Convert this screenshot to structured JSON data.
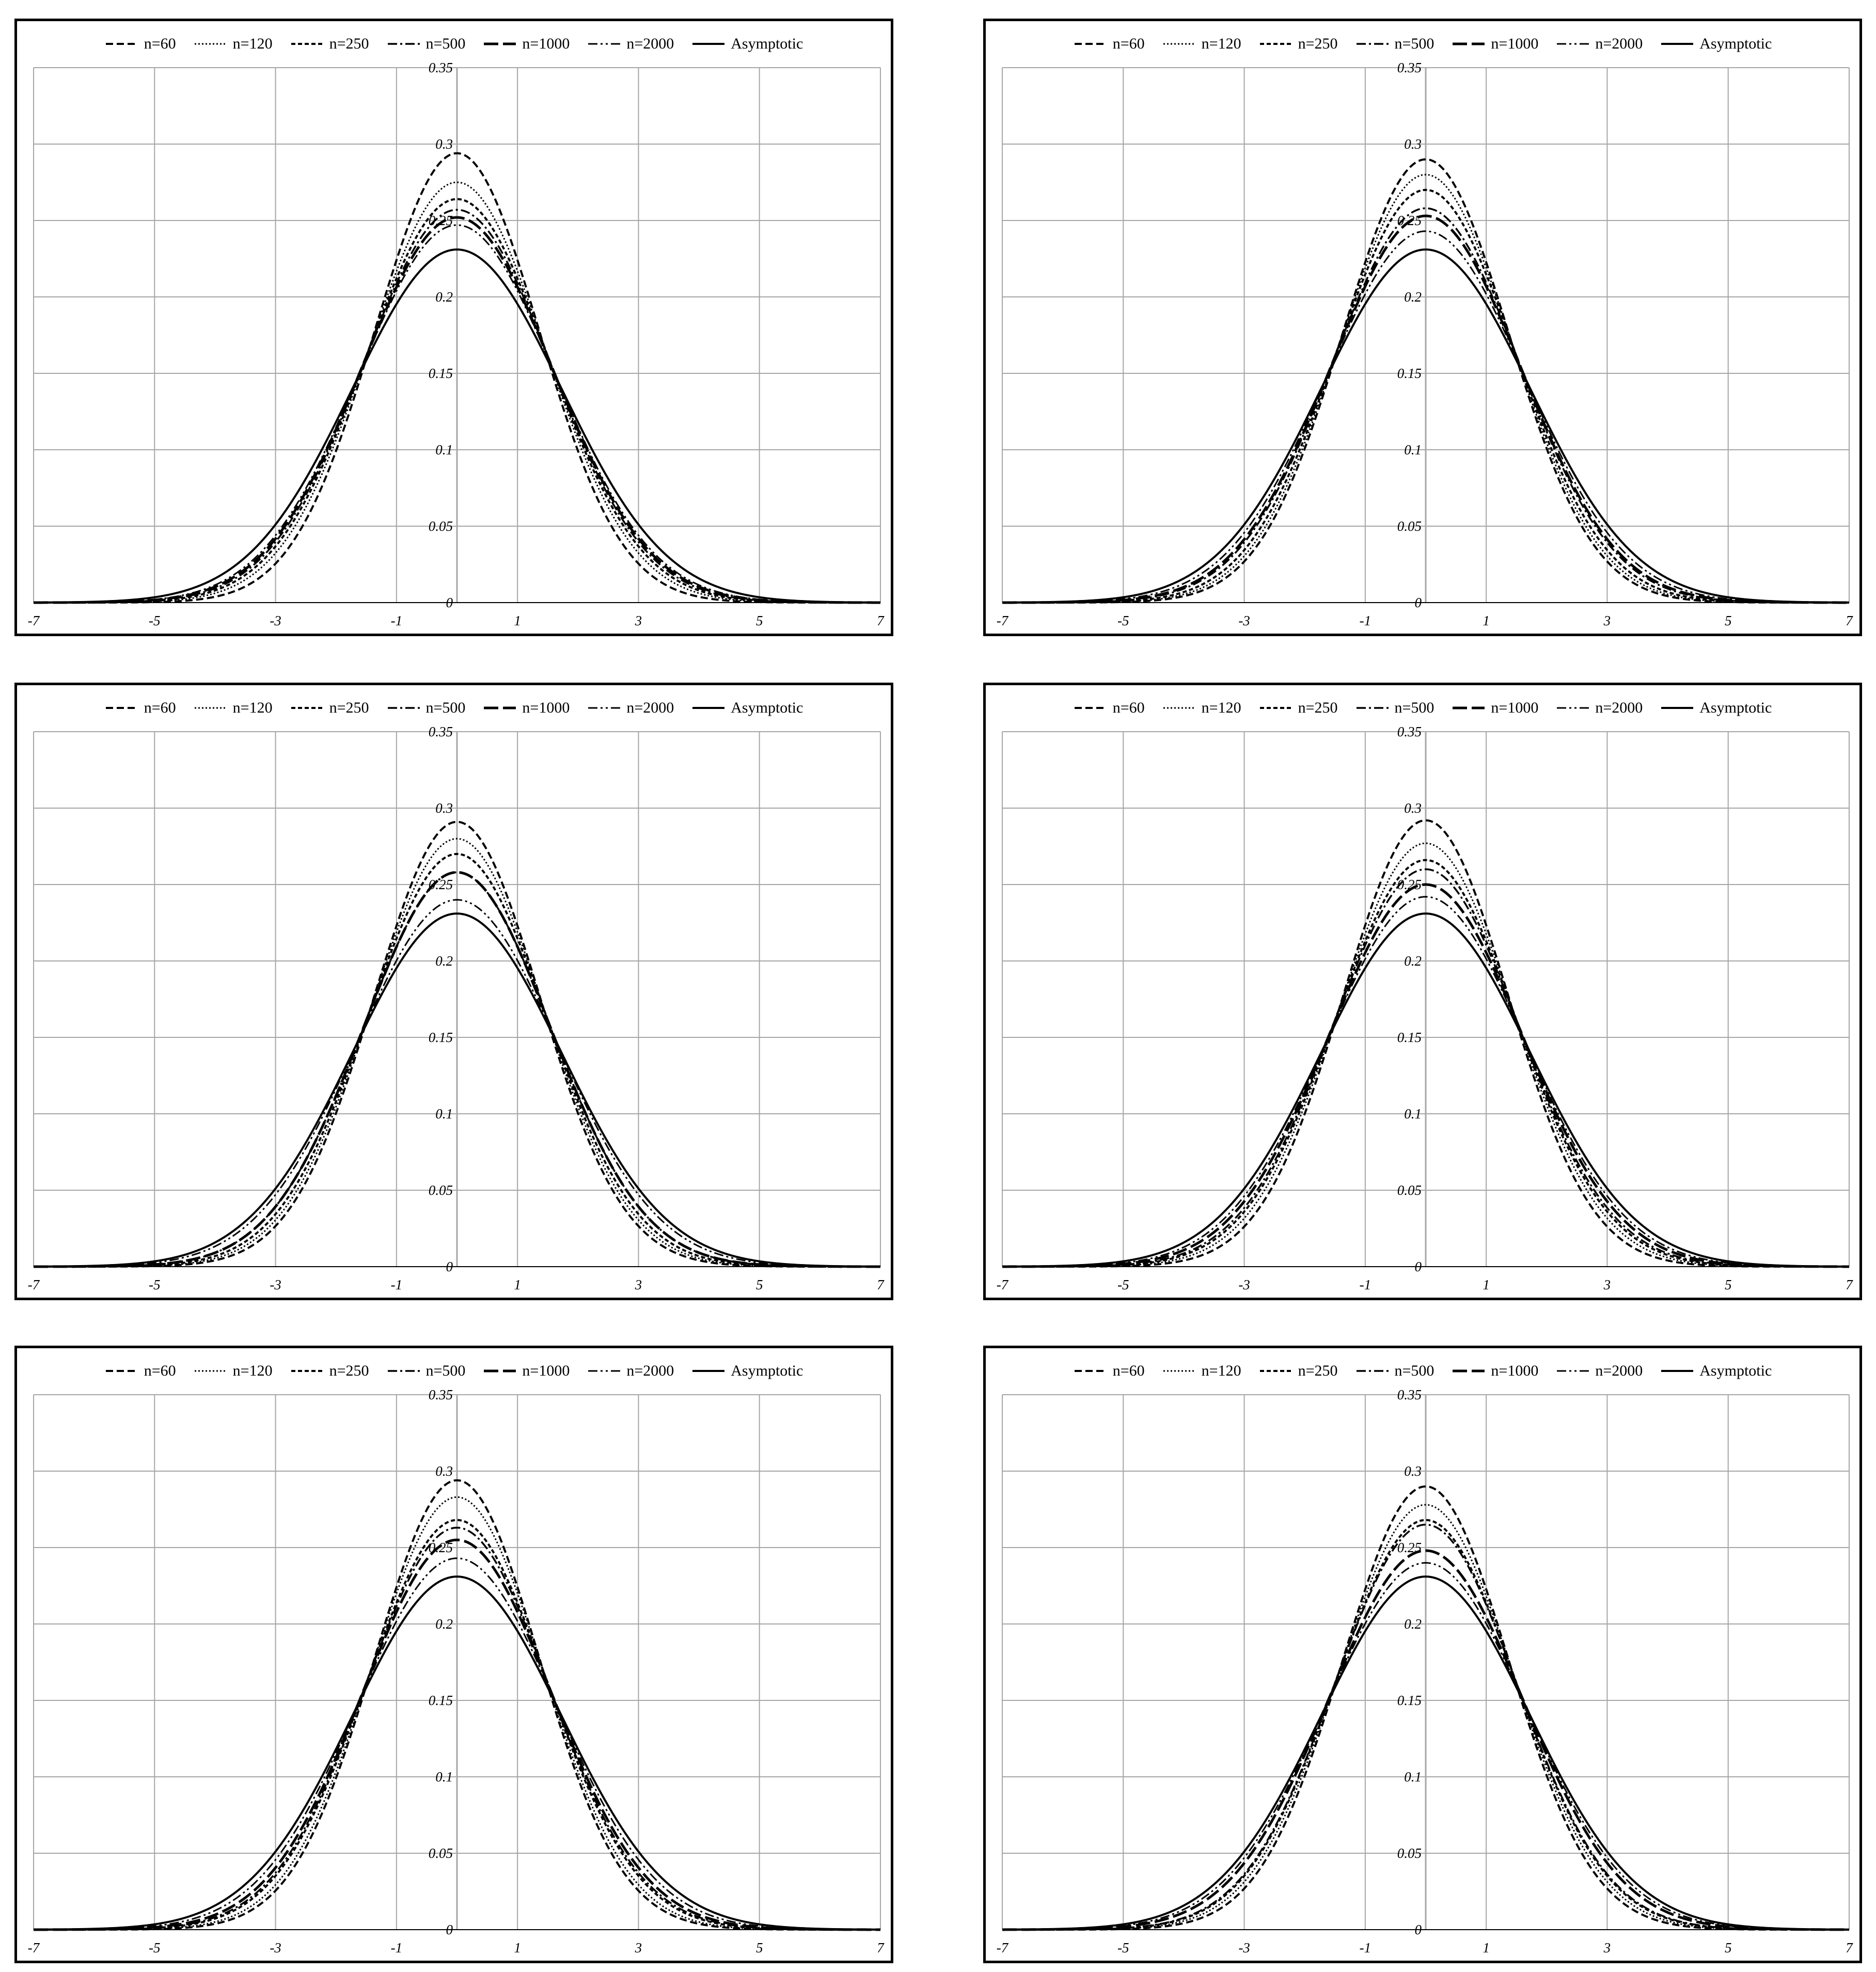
{
  "legend": [
    {
      "label": "n=60",
      "dash": "14 7",
      "width": 4
    },
    {
      "label": "n=120",
      "dash": "3 4",
      "width": 3
    },
    {
      "label": "n=250",
      "dash": "8 5",
      "width": 4
    },
    {
      "label": "n=500",
      "dash": "18 6 4 6",
      "width": 3.5
    },
    {
      "label": "n=1000",
      "dash": "28 9",
      "width": 5
    },
    {
      "label": "n=2000",
      "dash": "18 6 4 6 4 6",
      "width": 3
    },
    {
      "label": "Asymptotic",
      "dash": "",
      "width": 4
    }
  ],
  "colors": {
    "line": "#000000",
    "grid": "#a6a6a6",
    "frame": "#000000"
  },
  "chart_data": [
    {
      "type": "line",
      "function": "density",
      "x_range": [
        -7,
        7
      ],
      "ylim": [
        0,
        0.35
      ],
      "x_ticks": [
        "-7",
        "-5",
        "-3",
        "-1",
        "1",
        "3",
        "5",
        "7"
      ],
      "y_ticks": [
        "0",
        "0.05",
        "0.1",
        "0.15",
        "0.2",
        "0.25",
        "0.3",
        "0.35"
      ],
      "grid": true,
      "legend_position": "top",
      "series": [
        {
          "name": "n=60",
          "peak": 0.294
        },
        {
          "name": "n=120",
          "peak": 0.275
        },
        {
          "name": "n=250",
          "peak": 0.264
        },
        {
          "name": "n=500",
          "peak": 0.257
        },
        {
          "name": "n=1000",
          "peak": 0.252
        },
        {
          "name": "n=2000",
          "peak": 0.247
        },
        {
          "name": "Asymptotic",
          "peak": 0.231
        }
      ]
    },
    {
      "type": "line",
      "function": "density",
      "x_range": [
        -7,
        7
      ],
      "ylim": [
        0,
        0.35
      ],
      "x_ticks": [
        "-7",
        "-5",
        "-3",
        "-1",
        "1",
        "3",
        "5",
        "7"
      ],
      "y_ticks": [
        "0",
        "0.05",
        "0.1",
        "0.15",
        "0.2",
        "0.25",
        "0.3",
        "0.35"
      ],
      "grid": true,
      "legend_position": "top",
      "series": [
        {
          "name": "n=60",
          "peak": 0.29
        },
        {
          "name": "n=120",
          "peak": 0.28
        },
        {
          "name": "n=250",
          "peak": 0.27
        },
        {
          "name": "n=500",
          "peak": 0.258
        },
        {
          "name": "n=1000",
          "peak": 0.253
        },
        {
          "name": "n=2000",
          "peak": 0.243
        },
        {
          "name": "Asymptotic",
          "peak": 0.231
        }
      ]
    },
    {
      "type": "line",
      "function": "density",
      "x_range": [
        -7,
        7
      ],
      "ylim": [
        0,
        0.35
      ],
      "x_ticks": [
        "-7",
        "-5",
        "-3",
        "-1",
        "1",
        "3",
        "5",
        "7"
      ],
      "y_ticks": [
        "0",
        "0.05",
        "0.1",
        "0.15",
        "0.2",
        "0.25",
        "0.3",
        "0.35"
      ],
      "grid": true,
      "legend_position": "top",
      "series": [
        {
          "name": "n=60",
          "peak": 0.291
        },
        {
          "name": "n=120",
          "peak": 0.28
        },
        {
          "name": "n=250",
          "peak": 0.27
        },
        {
          "name": "n=500",
          "peak": 0.258
        },
        {
          "name": "n=1000",
          "peak": 0.258
        },
        {
          "name": "n=2000",
          "peak": 0.24
        },
        {
          "name": "Asymptotic",
          "peak": 0.231
        }
      ]
    },
    {
      "type": "line",
      "function": "density",
      "x_range": [
        -7,
        7
      ],
      "ylim": [
        0,
        0.35
      ],
      "x_ticks": [
        "-7",
        "-5",
        "-3",
        "-1",
        "1",
        "3",
        "5",
        "7"
      ],
      "y_ticks": [
        "0",
        "0.05",
        "0.1",
        "0.15",
        "0.2",
        "0.25",
        "0.3",
        "0.35"
      ],
      "grid": true,
      "legend_position": "top",
      "series": [
        {
          "name": "n=60",
          "peak": 0.292
        },
        {
          "name": "n=120",
          "peak": 0.277
        },
        {
          "name": "n=250",
          "peak": 0.266
        },
        {
          "name": "n=500",
          "peak": 0.26
        },
        {
          "name": "n=1000",
          "peak": 0.25
        },
        {
          "name": "n=2000",
          "peak": 0.242
        },
        {
          "name": "Asymptotic",
          "peak": 0.231
        }
      ]
    },
    {
      "type": "line",
      "function": "density",
      "x_range": [
        -7,
        7
      ],
      "ylim": [
        0,
        0.35
      ],
      "x_ticks": [
        "-7",
        "-5",
        "-3",
        "-1",
        "1",
        "3",
        "5",
        "7"
      ],
      "y_ticks": [
        "0",
        "0.05",
        "0.1",
        "0.15",
        "0.2",
        "0.25",
        "0.3",
        "0.35"
      ],
      "grid": true,
      "legend_position": "top",
      "series": [
        {
          "name": "n=60",
          "peak": 0.294
        },
        {
          "name": "n=120",
          "peak": 0.283
        },
        {
          "name": "n=250",
          "peak": 0.268
        },
        {
          "name": "n=500",
          "peak": 0.263
        },
        {
          "name": "n=1000",
          "peak": 0.255
        },
        {
          "name": "n=2000",
          "peak": 0.243
        },
        {
          "name": "Asymptotic",
          "peak": 0.231
        }
      ]
    },
    {
      "type": "line",
      "function": "density",
      "x_range": [
        -7,
        7
      ],
      "ylim": [
        0,
        0.35
      ],
      "x_ticks": [
        "-7",
        "-5",
        "-3",
        "-1",
        "1",
        "3",
        "5",
        "7"
      ],
      "y_ticks": [
        "0",
        "0.05",
        "0.1",
        "0.15",
        "0.2",
        "0.25",
        "0.3",
        "0.35"
      ],
      "grid": true,
      "legend_position": "top",
      "series": [
        {
          "name": "n=60",
          "peak": 0.29
        },
        {
          "name": "n=120",
          "peak": 0.278
        },
        {
          "name": "n=250",
          "peak": 0.268
        },
        {
          "name": "n=500",
          "peak": 0.265
        },
        {
          "name": "n=1000",
          "peak": 0.248
        },
        {
          "name": "n=2000",
          "peak": 0.24
        },
        {
          "name": "Asymptotic",
          "peak": 0.231
        }
      ]
    }
  ]
}
